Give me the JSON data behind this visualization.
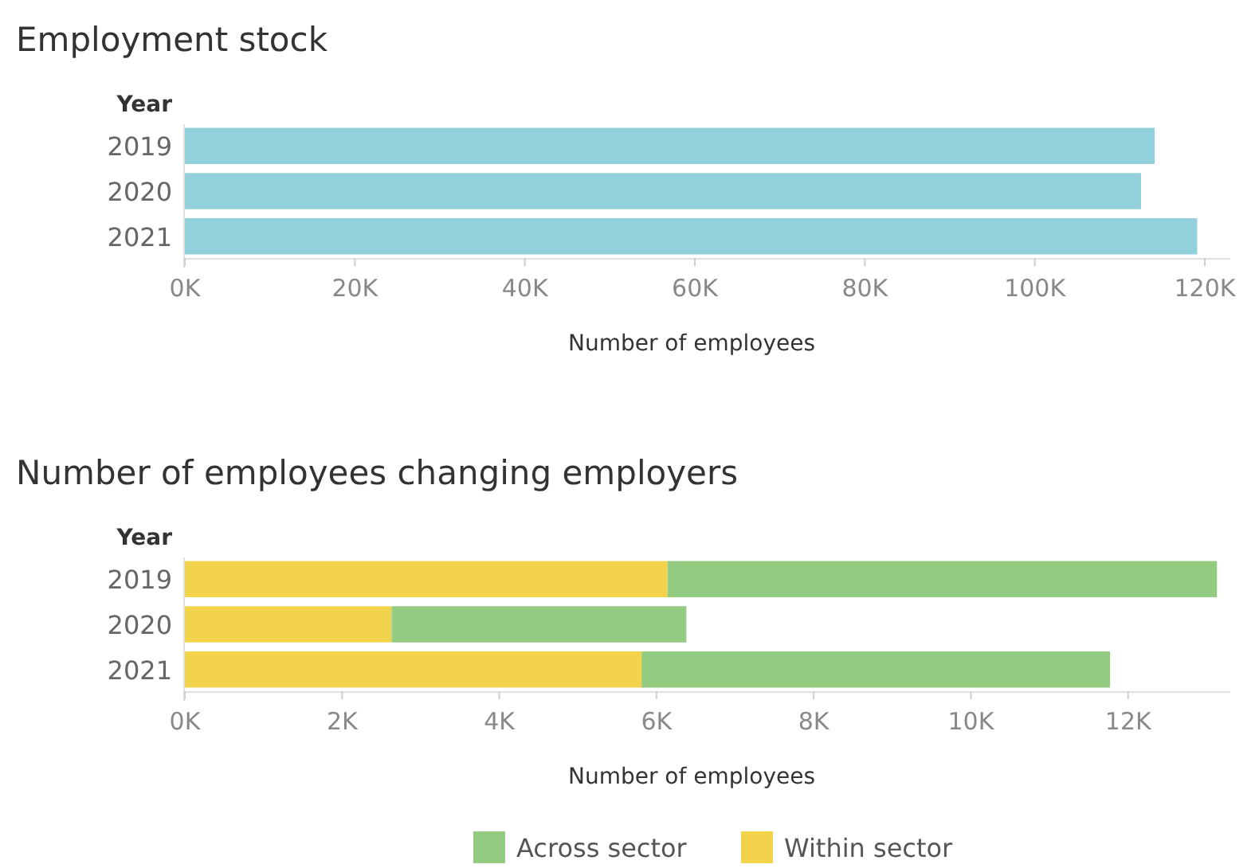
{
  "chart_data": [
    {
      "type": "bar",
      "orientation": "horizontal",
      "title": "Employment stock",
      "ylabel": "Year",
      "xlabel": "Number of employees",
      "categories": [
        "2019",
        "2020",
        "2021"
      ],
      "values": [
        114100,
        112500,
        119100
      ],
      "color": "#92d0db",
      "xlim": [
        0,
        123000
      ],
      "xticks": [
        {
          "value": 0,
          "label": "0K"
        },
        {
          "value": 20000,
          "label": "20K"
        },
        {
          "value": 40000,
          "label": "40K"
        },
        {
          "value": 60000,
          "label": "60K"
        },
        {
          "value": 80000,
          "label": "80K"
        },
        {
          "value": 100000,
          "label": "100K"
        },
        {
          "value": 120000,
          "label": "120K"
        }
      ],
      "grid": false,
      "legend": false
    },
    {
      "type": "bar",
      "orientation": "horizontal",
      "stacked": true,
      "title": "Number of employees changing employers",
      "ylabel": "Year",
      "xlabel": "Number of employees",
      "categories": [
        "2019",
        "2020",
        "2021"
      ],
      "series": [
        {
          "name": "Within sector",
          "color": "#f2d34b",
          "values": [
            6140,
            2630,
            5810
          ]
        },
        {
          "name": "Across sector",
          "color": "#93cb80",
          "values": [
            6990,
            3750,
            5960
          ]
        }
      ],
      "xlim": [
        0,
        13300
      ],
      "xticks": [
        {
          "value": 0,
          "label": "0K"
        },
        {
          "value": 2000,
          "label": "2K"
        },
        {
          "value": 4000,
          "label": "4K"
        },
        {
          "value": 6000,
          "label": "6K"
        },
        {
          "value": 8000,
          "label": "8K"
        },
        {
          "value": 10000,
          "label": "10K"
        },
        {
          "value": 12000,
          "label": "12K"
        }
      ],
      "grid": false,
      "legend": "bottom"
    }
  ]
}
